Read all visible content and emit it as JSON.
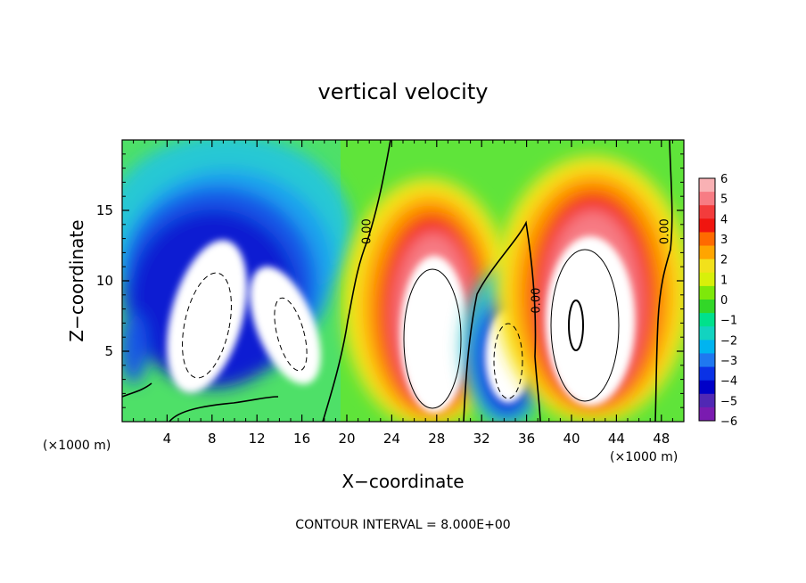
{
  "chart_data": {
    "type": "heatmap",
    "title": "vertical velocity",
    "xlabel": "X−coordinate",
    "ylabel": "Z−coordinate",
    "x_unit_left": "(×1000 m)",
    "x_unit_right": "(×1000 m)",
    "footer": "CONTOUR INTERVAL =  8.000E+00",
    "xlim": [
      0,
      50
    ],
    "ylim": [
      0,
      20
    ],
    "x_ticks": [
      4,
      8,
      12,
      16,
      20,
      24,
      28,
      32,
      36,
      40,
      44,
      48
    ],
    "y_ticks": [
      5,
      10,
      15
    ],
    "contour_labels": [
      "0.00",
      "0.00",
      "0.00"
    ],
    "colorbar": {
      "ticks": [
        "6",
        "5",
        "4",
        "3",
        "2",
        "1",
        "0",
        "−1",
        "−2",
        "−3",
        "−4",
        "−5",
        "−6"
      ],
      "colors": [
        "#f9b1b4",
        "#f77c84",
        "#f33c3c",
        "#f0150f",
        "#ff6a00",
        "#ffa500",
        "#f2e11b",
        "#d8f00a",
        "#7ee80a",
        "#32d728",
        "#00e18c",
        "#12d3c0",
        "#00b4f0",
        "#1f78f0",
        "#0a32e6",
        "#0000c8",
        "#5028b4",
        "#7a1bb0"
      ]
    },
    "features": [
      {
        "kind": "updraft_negative",
        "x": 8,
        "z": 7,
        "rx": 2.8,
        "rz": 5.5
      },
      {
        "kind": "updraft_negative",
        "x": 14,
        "z": 7,
        "rx": 2.2,
        "rz": 5
      },
      {
        "kind": "updraft_positive",
        "x": 27.5,
        "z": 6.5,
        "rx": 3,
        "rz": 5.5
      },
      {
        "kind": "updraft_negative",
        "x": 34,
        "z": 5.5,
        "rx": 2.3,
        "rz": 4
      },
      {
        "kind": "updraft_positive",
        "x": 41,
        "z": 7.5,
        "rx": 3.5,
        "rz": 6
      }
    ]
  }
}
